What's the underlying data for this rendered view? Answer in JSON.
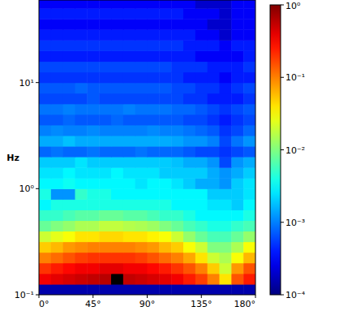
{
  "chart_data": {
    "type": "heatmap",
    "ylabel": "Hz",
    "log": "y",
    "xlim": [
      0,
      180
    ],
    "ylim": [
      0.1,
      60
    ],
    "xticks": [
      {
        "value": 0,
        "label": "0°"
      },
      {
        "value": 45,
        "label": "45°"
      },
      {
        "value": 90,
        "label": "90°"
      },
      {
        "value": 135,
        "label": "135°"
      },
      {
        "value": 180,
        "label": "180°"
      }
    ],
    "yticks": [
      {
        "value": 0.1,
        "label": "10⁻¹"
      },
      {
        "value": 1,
        "label": "10⁰"
      },
      {
        "value": 10,
        "label": "10¹"
      }
    ],
    "clim": [
      0.0001,
      1
    ],
    "cticks": [
      {
        "value": 0.0001,
        "label": "10⁻⁴"
      },
      {
        "value": 0.001,
        "label": "10⁻³"
      },
      {
        "value": 0.01,
        "label": "10⁻²"
      },
      {
        "value": 0.1,
        "label": "10⁻¹"
      },
      {
        "value": 1,
        "label": "10⁰"
      }
    ],
    "x": [
      5,
      15,
      25,
      35,
      45,
      55,
      65,
      75,
      85,
      95,
      105,
      115,
      125,
      135,
      145,
      155,
      165,
      175
    ],
    "y": [
      0.112,
      0.141,
      0.178,
      0.224,
      0.282,
      0.355,
      0.447,
      0.562,
      0.708,
      0.891,
      1.12,
      1.41,
      1.78,
      2.24,
      2.82,
      3.55,
      4.47,
      5.62,
      7.08,
      8.91,
      11.2,
      14.1,
      17.8,
      22.4,
      28.2,
      35.5,
      44.7,
      56.2
    ],
    "cells": [
      [
        0.00015,
        0.00015,
        0.00015,
        0.00015,
        0.00015,
        0.00015,
        0.00015,
        0.00015,
        0.00015,
        0.00015,
        0.00015,
        0.00015,
        0.00015,
        0.00015,
        0.00015,
        0.00015,
        0.00015,
        0.00015
      ],
      [
        0.35,
        0.4,
        0.45,
        0.5,
        0.55,
        0.6,
        1.5,
        0.55,
        0.5,
        0.45,
        0.4,
        0.35,
        0.25,
        0.18,
        0.1,
        0.04,
        0.15,
        0.25
      ],
      [
        0.2,
        0.25,
        0.3,
        0.35,
        0.35,
        0.4,
        0.4,
        0.35,
        0.35,
        0.3,
        0.25,
        0.2,
        0.15,
        0.1,
        0.05,
        0.02,
        0.08,
        0.15
      ],
      [
        0.1,
        0.12,
        0.15,
        0.18,
        0.2,
        0.2,
        0.2,
        0.2,
        0.18,
        0.15,
        0.12,
        0.1,
        0.07,
        0.04,
        0.02,
        0.015,
        0.03,
        0.06
      ],
      [
        0.05,
        0.06,
        0.08,
        0.09,
        0.1,
        0.1,
        0.1,
        0.1,
        0.09,
        0.08,
        0.06,
        0.05,
        0.03,
        0.02,
        0.01,
        0.01,
        0.015,
        0.03
      ],
      [
        0.02,
        0.025,
        0.03,
        0.04,
        0.04,
        0.045,
        0.045,
        0.04,
        0.04,
        0.035,
        0.03,
        0.02,
        0.012,
        0.008,
        0.006,
        0.006,
        0.008,
        0.012
      ],
      [
        0.008,
        0.01,
        0.012,
        0.015,
        0.015,
        0.018,
        0.018,
        0.016,
        0.015,
        0.013,
        0.01,
        0.008,
        0.006,
        0.005,
        0.004,
        0.004,
        0.005,
        0.006
      ],
      [
        0.005,
        0.005,
        0.006,
        0.007,
        0.007,
        0.008,
        0.008,
        0.007,
        0.007,
        0.006,
        0.005,
        0.005,
        0.004,
        0.003,
        0.003,
        0.003,
        0.003,
        0.004
      ],
      [
        0.003,
        0.004,
        0.004,
        0.004,
        0.004,
        0.004,
        0.004,
        0.004,
        0.004,
        0.004,
        0.004,
        0.003,
        0.003,
        0.003,
        0.0025,
        0.0025,
        0.002,
        0.003
      ],
      [
        0.004,
        0.0012,
        0.0012,
        0.005,
        0.004,
        0.004,
        0.003,
        0.003,
        0.003,
        0.003,
        0.003,
        0.003,
        0.003,
        0.003,
        0.002,
        0.002,
        0.002,
        0.0025
      ],
      [
        0.003,
        0.003,
        0.0035,
        0.003,
        0.003,
        0.003,
        0.003,
        0.003,
        0.0025,
        0.003,
        0.003,
        0.0025,
        0.002,
        0.0015,
        0.0015,
        0.0012,
        0.002,
        0.0025
      ],
      [
        0.0025,
        0.0025,
        0.003,
        0.0025,
        0.0025,
        0.0025,
        0.003,
        0.0025,
        0.0025,
        0.0025,
        0.002,
        0.002,
        0.002,
        0.002,
        0.0015,
        0.0012,
        0.0015,
        0.002
      ],
      [
        0.002,
        0.002,
        0.002,
        0.0025,
        0.002,
        0.002,
        0.002,
        0.002,
        0.002,
        0.002,
        0.002,
        0.0018,
        0.0015,
        0.0015,
        0.0012,
        0.0006,
        0.0012,
        0.0015
      ],
      [
        0.0008,
        0.0009,
        0.0008,
        0.0008,
        0.0009,
        0.0008,
        0.0008,
        0.0008,
        0.0009,
        0.0008,
        0.0008,
        0.0008,
        0.0007,
        0.0006,
        0.0006,
        0.0005,
        0.0006,
        0.0007
      ],
      [
        0.0015,
        0.0015,
        0.0018,
        0.0015,
        0.0015,
        0.0015,
        0.0015,
        0.0015,
        0.0015,
        0.0015,
        0.0015,
        0.0014,
        0.0012,
        0.0012,
        0.001,
        0.0006,
        0.0009,
        0.0012
      ],
      [
        0.001,
        0.0011,
        0.001,
        0.001,
        0.0011,
        0.001,
        0.001,
        0.001,
        0.001,
        0.0011,
        0.001,
        0.001,
        0.0009,
        0.0008,
        0.0007,
        0.0005,
        0.0006,
        0.0008
      ],
      [
        0.0007,
        0.0007,
        0.0008,
        0.0007,
        0.0007,
        0.0007,
        0.0008,
        0.0007,
        0.0007,
        0.0007,
        0.0007,
        0.0007,
        0.0006,
        0.0006,
        0.0005,
        0.0004,
        0.0005,
        0.0006
      ],
      [
        0.0009,
        0.0009,
        0.001,
        0.0009,
        0.0009,
        0.0009,
        0.0009,
        0.001,
        0.0009,
        0.0009,
        0.0009,
        0.0008,
        0.0008,
        0.0007,
        0.0006,
        0.0005,
        0.0006,
        0.0007
      ],
      [
        0.0006,
        0.0006,
        0.0006,
        0.0006,
        0.0007,
        0.0006,
        0.0006,
        0.0006,
        0.0006,
        0.0006,
        0.0006,
        0.0006,
        0.0005,
        0.0005,
        0.0004,
        0.0004,
        0.0004,
        0.0005
      ],
      [
        0.0007,
        0.0007,
        0.0007,
        0.0008,
        0.0007,
        0.0007,
        0.0007,
        0.0007,
        0.0007,
        0.0007,
        0.0007,
        0.0006,
        0.0006,
        0.0005,
        0.0005,
        0.0004,
        0.0005,
        0.0006
      ],
      [
        0.0005,
        0.0005,
        0.0005,
        0.0005,
        0.0005,
        0.0005,
        0.0005,
        0.0005,
        0.0005,
        0.0005,
        0.0005,
        0.0005,
        0.0004,
        0.0004,
        0.0004,
        0.0003,
        0.0004,
        0.0004
      ],
      [
        0.0006,
        0.0006,
        0.0006,
        0.0006,
        0.0006,
        0.0006,
        0.0006,
        0.0006,
        0.0006,
        0.0006,
        0.0006,
        0.0005,
        0.0005,
        0.0005,
        0.0004,
        0.0004,
        0.0004,
        0.0005
      ],
      [
        0.0004,
        0.0004,
        0.0004,
        0.0004,
        0.0004,
        0.0004,
        0.0004,
        0.0004,
        0.0004,
        0.0004,
        0.0004,
        0.0004,
        0.0004,
        0.0003,
        0.0003,
        0.0003,
        0.0003,
        0.0004
      ],
      [
        0.0005,
        0.0005,
        0.0005,
        0.0005,
        0.0005,
        0.0005,
        0.0005,
        0.0005,
        0.0005,
        0.0005,
        0.0005,
        0.0005,
        0.0004,
        0.0004,
        0.0004,
        0.0003,
        0.0004,
        0.0004
      ],
      [
        0.0004,
        0.0004,
        0.0004,
        0.0004,
        0.0004,
        0.0004,
        0.0004,
        0.0004,
        0.0004,
        0.0004,
        0.0004,
        0.0004,
        0.0004,
        0.0003,
        0.0003,
        0.0002,
        0.0003,
        0.0003
      ],
      [
        0.0003,
        0.0003,
        0.0003,
        0.0003,
        0.0003,
        0.0003,
        0.0003,
        0.0003,
        0.0003,
        0.0003,
        0.0003,
        0.0003,
        0.0003,
        0.0003,
        0.0002,
        0.0002,
        0.0003,
        0.0003
      ],
      [
        0.0004,
        0.0004,
        0.0004,
        0.0004,
        0.0004,
        0.0004,
        0.0004,
        0.0004,
        0.0004,
        0.0004,
        0.0004,
        0.0004,
        0.0003,
        0.0003,
        0.0003,
        0.0002,
        0.0003,
        0.0003
      ],
      [
        0.0003,
        0.0003,
        0.0003,
        0.0003,
        0.0003,
        0.0003,
        0.0003,
        0.0003,
        0.0003,
        0.0003,
        0.0003,
        0.0003,
        0.0003,
        0.0002,
        0.0002,
        0.0002,
        0.0003,
        0.0003
      ]
    ]
  }
}
